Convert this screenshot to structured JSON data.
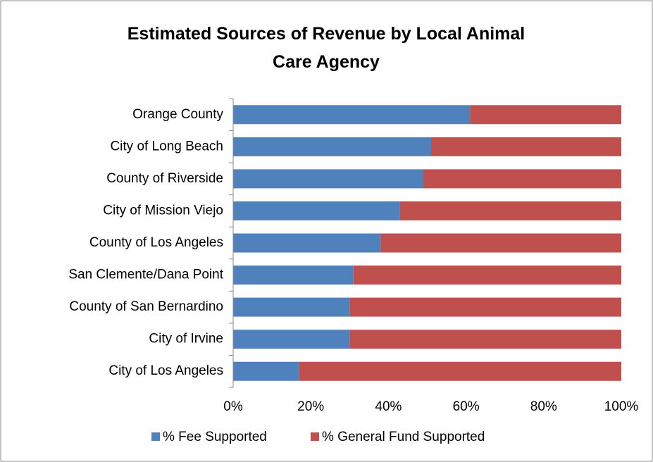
{
  "chart_data": {
    "type": "stacked_barh",
    "title": "Estimated Sources of Revenue by Local Animal Care Agency",
    "categories": [
      "Orange County",
      "City of Long Beach",
      "County of Riverside",
      "City of Mission Viejo",
      "County of Los Angeles",
      "San Clemente/Dana Point",
      "County of San Bernardino",
      "City of Irvine",
      "City of Los Angeles"
    ],
    "series": [
      {
        "name": "% Fee Supported",
        "color": "#4f81bd",
        "values": [
          61,
          51,
          49,
          43,
          38,
          31,
          30,
          30,
          17
        ]
      },
      {
        "name": "% General Fund Supported",
        "color": "#c0504d",
        "values": [
          39,
          49,
          51,
          57,
          62,
          69,
          70,
          70,
          83
        ]
      }
    ],
    "xlim": [
      0,
      100
    ],
    "xticks": [
      {
        "value": 0,
        "label": "0%"
      },
      {
        "value": 20,
        "label": "20%"
      },
      {
        "value": 40,
        "label": "40%"
      },
      {
        "value": 60,
        "label": "60%"
      },
      {
        "value": 80,
        "label": "80%"
      },
      {
        "value": 100,
        "label": "100%"
      }
    ],
    "legend": "bottom"
  }
}
